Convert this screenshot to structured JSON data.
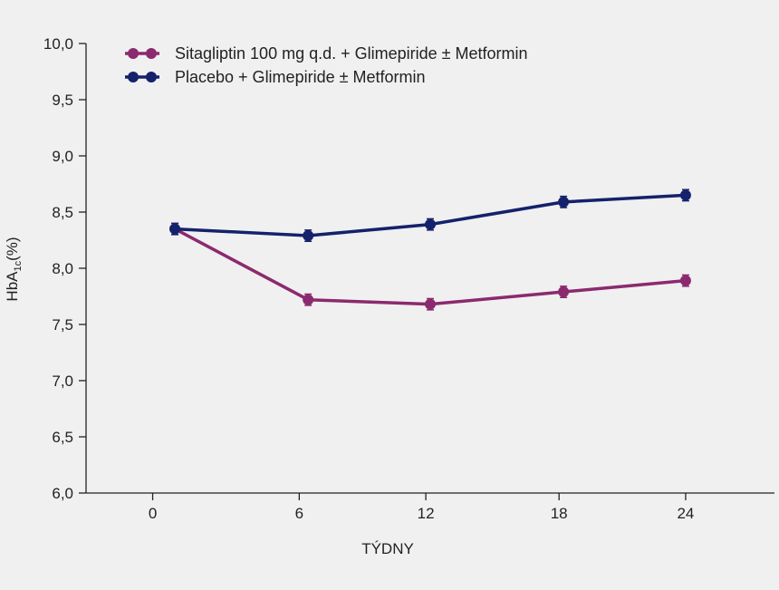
{
  "chart_data": {
    "type": "line",
    "x": [
      0,
      6,
      12,
      18,
      24
    ],
    "x_tick_labels": [
      "0",
      "6",
      "12",
      "18",
      "24"
    ],
    "x_plot_positions": [
      1,
      7,
      12.5,
      18.5,
      24
    ],
    "xlim": [
      -3,
      28
    ],
    "xlabel": "TÝDNY",
    "ylabel": {
      "main": "HbA",
      "subscript": "1c",
      "suffix": "(%)"
    },
    "ylim": [
      6.0,
      10.0
    ],
    "y_ticks": [
      6.0,
      6.5,
      7.0,
      7.5,
      8.0,
      8.5,
      9.0,
      9.5,
      10.0
    ],
    "y_tick_labels": [
      "6,0",
      "6,5",
      "7,0",
      "7,5",
      "8,0",
      "8,5",
      "9,0",
      "9,5",
      "10,0"
    ],
    "legend_position": "top-left",
    "error_bar": 0.05,
    "series": [
      {
        "name": "Sitagliptin 100 mg q.d. + Glimepiride ± Metformin",
        "color": "#8b2a6e",
        "values": [
          8.35,
          7.72,
          7.68,
          7.79,
          7.89
        ]
      },
      {
        "name": "Placebo + Glimepiride ± Metformin",
        "color": "#14216b",
        "values": [
          8.35,
          8.29,
          8.39,
          8.59,
          8.65
        ]
      }
    ]
  }
}
